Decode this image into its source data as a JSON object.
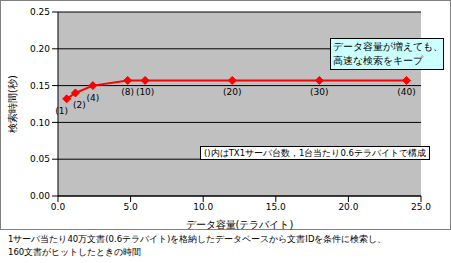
{
  "chart_data": {
    "type": "line",
    "x_label": "データ容量(テラバイト)",
    "y_label": "検索時間(秒)",
    "x": [
      0.6,
      1.2,
      2.4,
      4.8,
      6.0,
      12.0,
      18.0,
      24.0
    ],
    "values": [
      0.132,
      0.14,
      0.15,
      0.157,
      0.157,
      0.157,
      0.157,
      0.157
    ],
    "point_labels": [
      "(1)",
      "(2)",
      "(4)",
      "(8)",
      "(10)",
      "(20)",
      "(30)",
      "(40)"
    ],
    "color": "#ff0000",
    "marker": "diamond",
    "xlim": [
      0,
      25
    ],
    "xticks": [
      {
        "value": 0,
        "label": "0.0"
      },
      {
        "value": 5,
        "label": "5.0"
      },
      {
        "value": 10,
        "label": "10.0"
      },
      {
        "value": 15,
        "label": "15.0"
      },
      {
        "value": 20,
        "label": "20.0"
      },
      {
        "value": 25,
        "label": "25.0"
      }
    ],
    "ylim": [
      0,
      0.25
    ],
    "yticks": [
      {
        "value": 0,
        "label": "0.00"
      },
      0.05,
      {
        "value": 0.1,
        "label": "0.10"
      },
      0.15,
      {
        "value": 0.2,
        "label": "0.20"
      },
      0.25
    ],
    "grid": true,
    "annotation": [
      "データ容量が増えても、",
      "高速な検索をキープ"
    ],
    "note": "()内はTX1サーバ台数，1台当たり0.6テラバイトで構成",
    "footnote": [
      "1サーバ当たり40万文書(0.6テラバイト)を格納したデータベースから文書IDを条件に検索し、",
      "160文書がヒットしたときの時間"
    ]
  }
}
